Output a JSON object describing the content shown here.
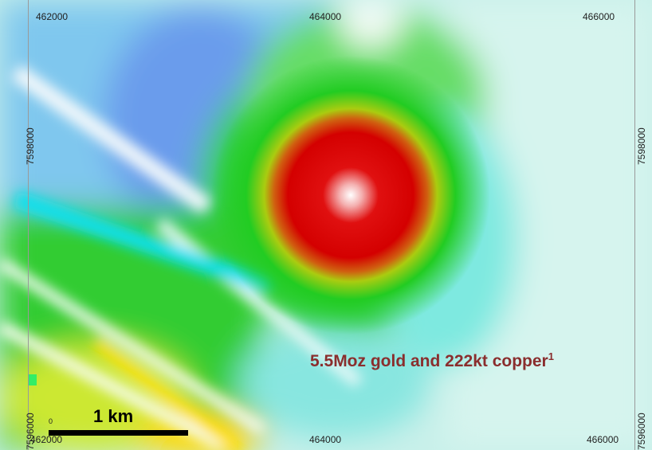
{
  "map": {
    "x_ticks_top": [
      "462000",
      "464000",
      "466000"
    ],
    "x_ticks_bottom": [
      "462000",
      "464000",
      "466000"
    ],
    "y_ticks_left": [
      "7598000",
      "7596000"
    ],
    "y_ticks_right": [
      "7598000",
      "7596000"
    ],
    "annotation_text": "5.5Moz gold and 222kt copper",
    "annotation_superscript": "1",
    "annotation_color": "#8a2e2e",
    "scale_bar": {
      "start_label": "0",
      "label": "1 km"
    },
    "colors": {
      "anomaly_high": "#e00000",
      "anomaly_peak": "#ffffff",
      "green": "#22cc22",
      "cyan": "#00e5ee",
      "blue": "#6699ee",
      "yellow": "#ffee00",
      "pale": "#d8f6ee"
    }
  }
}
